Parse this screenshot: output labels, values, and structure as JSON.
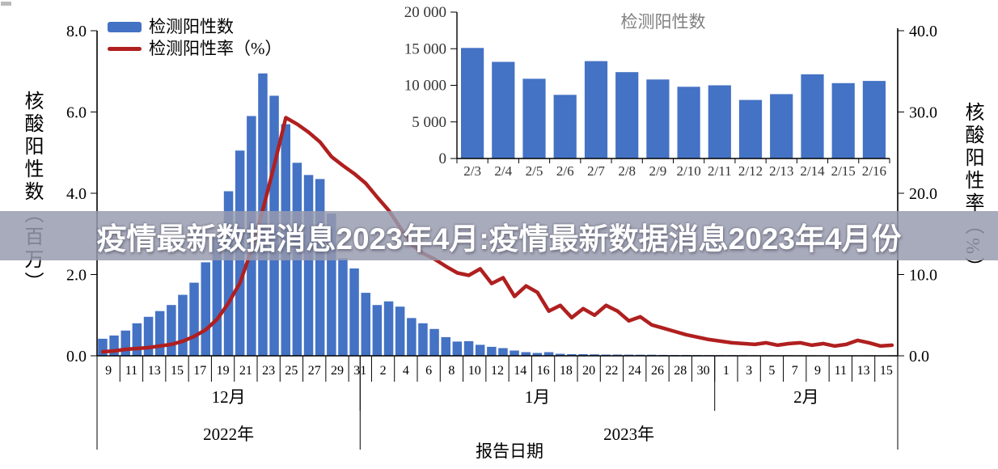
{
  "banner": {
    "text": "疫情最新数据消息2023年4月:疫情最新数据消息2023年4月份",
    "bg_color": "rgba(151,155,174,0.84)",
    "text_color": "#ffffff"
  },
  "colors": {
    "bar": "#4472C4",
    "line": "#B01F1F",
    "inset_title": "#808080",
    "axis": "#000000"
  },
  "chart_data": [
    {
      "type": "bar+line",
      "name": "main-epidemic-chart",
      "xlabel": "报告日期",
      "ylabel_left": "核酸阳性数（百万）",
      "ylabel_right": "核酸阳性率（%）",
      "legend": [
        {
          "label": "检测阳性数",
          "kind": "bar",
          "color": "#4472C4"
        },
        {
          "label": "检测阳性率（%）",
          "kind": "line",
          "color": "#B01F1F"
        }
      ],
      "ylim_left": [
        0,
        8
      ],
      "yticks_left": [
        "0.0",
        "2.0",
        "4.0",
        "6.0",
        "8.0"
      ],
      "ylim_right": [
        0,
        40
      ],
      "yticks_right": [
        "0.0",
        "10.0",
        "20.0",
        "30.0",
        "40.0"
      ],
      "x_start_date": "2022-12-09",
      "x_end_date": "2023-02-16",
      "day_labels": [
        "9",
        "11",
        "13",
        "15",
        "17",
        "19",
        "21",
        "23",
        "25",
        "27",
        "29",
        "31",
        "2",
        "4",
        "6",
        "8",
        "10",
        "12",
        "14",
        "16",
        "18",
        "20",
        "22",
        "24",
        "26",
        "28",
        "30",
        "1",
        "3",
        "5",
        "7",
        "9",
        "11",
        "13",
        "15"
      ],
      "months": [
        {
          "label": "12月",
          "start": 0,
          "end": 23
        },
        {
          "label": "1月",
          "start": 23,
          "end": 54
        },
        {
          "label": "2月",
          "start": 54,
          "end": 70
        }
      ],
      "years": [
        {
          "label": "2022年",
          "start": 0,
          "end": 23
        },
        {
          "label": "2023年",
          "start": 23,
          "end": 70
        }
      ],
      "bars_series_name": "检测阳性数",
      "bars": [
        0.42,
        0.5,
        0.62,
        0.8,
        0.96,
        1.1,
        1.25,
        1.5,
        1.8,
        2.3,
        2.9,
        4.05,
        5.05,
        5.9,
        6.95,
        6.4,
        5.7,
        4.75,
        4.45,
        4.35,
        3.5,
        2.4,
        2.15,
        1.55,
        1.25,
        1.34,
        1.21,
        0.93,
        0.8,
        0.66,
        0.46,
        0.35,
        0.36,
        0.27,
        0.22,
        0.19,
        0.13,
        0.09,
        0.07,
        0.09,
        0.05,
        0.04,
        0.04,
        0.035,
        0.03,
        0.03,
        0.028,
        0.025,
        0.025,
        0.022,
        0.02,
        0.02,
        0.018,
        0.016,
        0.016,
        0.015,
        0.015,
        0.013,
        0.011,
        0.009,
        0.013,
        0.012,
        0.011,
        0.01,
        0.01,
        0.008,
        0.009,
        0.012,
        0.01,
        0.011
      ],
      "line_series_name": "检测阳性率（%）",
      "line": [
        0.5,
        0.6,
        0.8,
        0.9,
        1.0,
        1.2,
        1.4,
        1.8,
        2.4,
        3.2,
        4.5,
        6.5,
        9.0,
        13.0,
        18.0,
        23.5,
        29.3,
        28.5,
        27.5,
        26.3,
        24.5,
        23.4,
        22.4,
        21.2,
        19.5,
        17.9,
        15.8,
        13.7,
        12.6,
        11.9,
        11.0,
        10.2,
        9.9,
        10.7,
        8.9,
        9.6,
        7.3,
        8.6,
        7.8,
        5.5,
        6.2,
        4.7,
        5.8,
        5.0,
        6.2,
        5.5,
        4.3,
        4.8,
        3.8,
        3.4,
        3.0,
        2.6,
        2.3,
        2.0,
        1.8,
        1.6,
        1.5,
        1.4,
        1.6,
        1.3,
        1.5,
        1.6,
        1.3,
        1.5,
        1.2,
        1.4,
        1.9,
        1.6,
        1.2,
        1.3
      ]
    },
    {
      "type": "bar",
      "name": "inset-february-chart",
      "title": "检测阳性数",
      "categories": [
        "2/3",
        "2/4",
        "2/5",
        "2/6",
        "2/7",
        "2/8",
        "2/9",
        "2/10",
        "2/11",
        "2/12",
        "2/13",
        "2/14",
        "2/15",
        "2/16"
      ],
      "values": [
        15100,
        13200,
        10900,
        8700,
        13300,
        11800,
        10800,
        9800,
        10000,
        8000,
        8800,
        11500,
        10300,
        10600
      ],
      "ylim": [
        0,
        20000
      ],
      "yticks": [
        "0",
        "5 000",
        "10 000",
        "15 000",
        "20 000"
      ],
      "bar_color": "#4472C4"
    }
  ]
}
